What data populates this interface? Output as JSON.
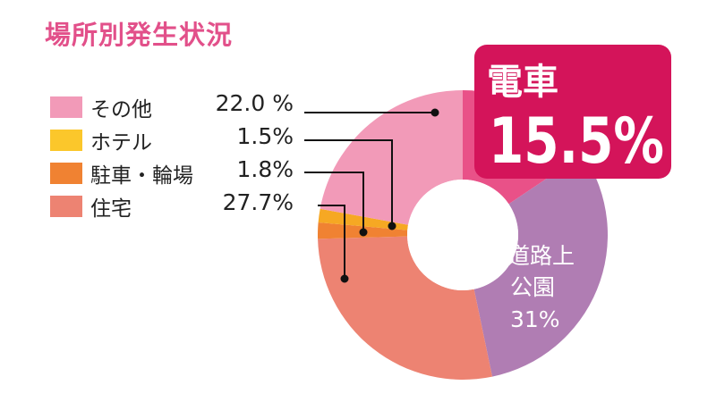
{
  "chart_data": {
    "type": "pie",
    "title": "場所別発生状況",
    "donut": true,
    "slices": [
      {
        "label": "電車",
        "value": 15.5,
        "value_label": "15.5%",
        "color": "#e95188"
      },
      {
        "label": "道路上公園",
        "label_lines": [
          "道路上",
          "公園"
        ],
        "value": 31,
        "value_label": "31%",
        "color": "#b07db3"
      },
      {
        "label": "住宅",
        "value": 27.7,
        "value_label": "27.7%",
        "color": "#ed8372"
      },
      {
        "label": "駐車・輪場",
        "value": 1.8,
        "value_label": "1.8%",
        "color": "#f08232"
      },
      {
        "label": "ホテル",
        "value": 1.5,
        "value_label": "1.5%",
        "color": "#f6a823"
      },
      {
        "label": "その他",
        "value": 22.0,
        "value_label": "22.0 %",
        "color": "#f29ab8"
      }
    ],
    "legend": [
      {
        "label": "その他",
        "color": "#f29ab8"
      },
      {
        "label": "ホテル",
        "color": "#fbc72b"
      },
      {
        "label": "駐車・輪場",
        "color": "#f08232"
      },
      {
        "label": "住宅",
        "color": "#ed8372"
      }
    ],
    "callout_color": "#d4145a",
    "legend_placement": "left"
  }
}
